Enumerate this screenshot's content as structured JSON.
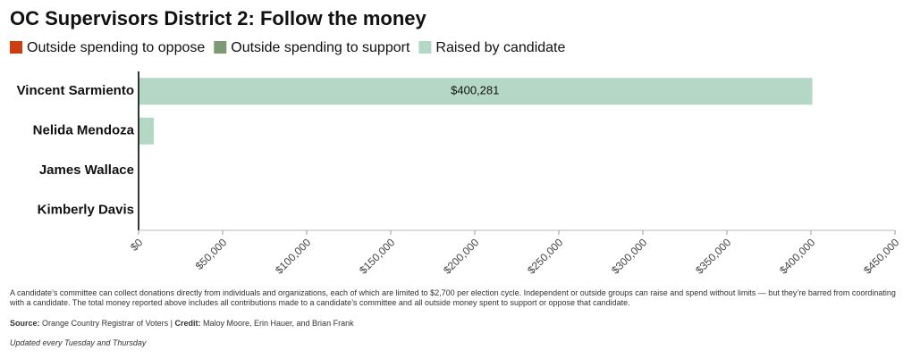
{
  "chart_data": {
    "type": "stacked_bar_horizontal",
    "title": "OC Supervisors District 2: Follow the money",
    "categories": [
      "Vincent Sarmiento",
      "Nelida Mendoza",
      "James Wallace",
      "Kimberly Davis"
    ],
    "series": [
      {
        "name": "Outside spending to oppose",
        "color": "#cc3d10",
        "values": [
          0,
          0,
          0,
          0
        ]
      },
      {
        "name": "Outside spending to support",
        "color": "#7d9a74",
        "values": [
          0,
          0,
          0,
          0
        ]
      },
      {
        "name": "Raised by candidate",
        "color": "#b4d8c5",
        "values": [
          400281,
          8500,
          0,
          0
        ],
        "value_labels": [
          "$400,281",
          null,
          null,
          null
        ]
      }
    ],
    "xlim": [
      0,
      450000
    ],
    "xticks": [
      {
        "value": 0,
        "label": "$0"
      },
      {
        "value": 50000,
        "label": "$50,000"
      },
      {
        "value": 100000,
        "label": "$100,000"
      },
      {
        "value": 150000,
        "label": "$150,000"
      },
      {
        "value": 200000,
        "label": "$200,000"
      },
      {
        "value": 250000,
        "label": "$250,000"
      },
      {
        "value": 300000,
        "label": "$300,000"
      },
      {
        "value": 350000,
        "label": "$350,000"
      },
      {
        "value": 400000,
        "label": "$400,000"
      },
      {
        "value": 450000,
        "label": "$450,000"
      }
    ],
    "grid": false,
    "note": "A candidate’s committee can collect donations directly from individuals and organizations, each of which are limited to $2,700 per election cycle. Independent or outside groups can raise and spend without limits — but they’re barred from coordinating with a candidate. The total money reported above includes all contributions made to a candidate’s committee and all outside money spent to support or oppose that candidate.",
    "source_label": "Source:",
    "source": "Orange Country Registrar of Voters",
    "separator": "|",
    "credit_label": "Credit:",
    "credit": "Maloy Moore, Erin Hauer, and Brian Frank",
    "updated": "Updated every Tuesday and Thursday"
  }
}
